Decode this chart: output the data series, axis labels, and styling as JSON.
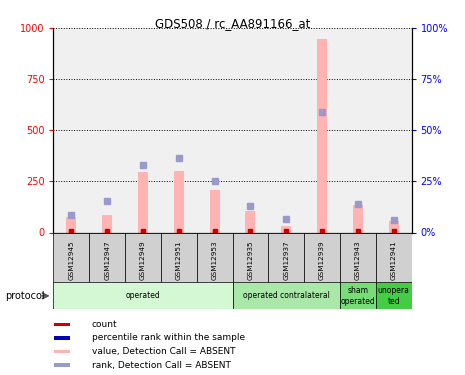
{
  "title": "GDS508 / rc_AA891166_at",
  "samples": [
    "GSM12945",
    "GSM12947",
    "GSM12949",
    "GSM12951",
    "GSM12953",
    "GSM12935",
    "GSM12937",
    "GSM12939",
    "GSM12943",
    "GSM12941"
  ],
  "pink_bars": [
    75,
    85,
    295,
    300,
    210,
    105,
    32,
    945,
    135,
    58
  ],
  "blue_squares_rank": [
    8.5,
    15.5,
    33.0,
    36.5,
    25.0,
    13.0,
    6.5,
    59.0,
    14.0,
    6.0
  ],
  "red_squares_val": [
    5,
    5,
    5,
    5,
    5,
    5,
    5,
    5,
    5,
    5
  ],
  "red_squares_rank": [
    0.5,
    0.5,
    0.5,
    0.5,
    0.5,
    0.5,
    0.5,
    0.5,
    0.5,
    0.5
  ],
  "ylim_left": [
    0,
    1000
  ],
  "ylim_right": [
    0,
    100
  ],
  "yticks_left": [
    0,
    250,
    500,
    750,
    1000
  ],
  "yticks_right": [
    0,
    25,
    50,
    75,
    100
  ],
  "ytick_labels_right": [
    "0%",
    "25%",
    "50%",
    "75%",
    "100%"
  ],
  "pink_color": "#ffb3b3",
  "blue_color": "#9999cc",
  "red_color": "#cc0000",
  "blue_dark_color": "#0000bb",
  "bg_color": "#f0f0f0",
  "group_colors": [
    "#d4f7d4",
    "#aae8aa",
    "#77dd77",
    "#44cc44"
  ],
  "groups": [
    {
      "label": "operated",
      "start": 0,
      "end": 5
    },
    {
      "label": "operated contralateral",
      "start": 5,
      "end": 8
    },
    {
      "label": "sham\noperated",
      "start": 8,
      "end": 9
    },
    {
      "label": "unopera\nted",
      "start": 9,
      "end": 10
    }
  ],
  "legend_colors": [
    "#cc0000",
    "#0000bb",
    "#ffb3b3",
    "#9999cc"
  ],
  "legend_labels": [
    "count",
    "percentile rank within the sample",
    "value, Detection Call = ABSENT",
    "rank, Detection Call = ABSENT"
  ],
  "protocol_label": "protocol"
}
